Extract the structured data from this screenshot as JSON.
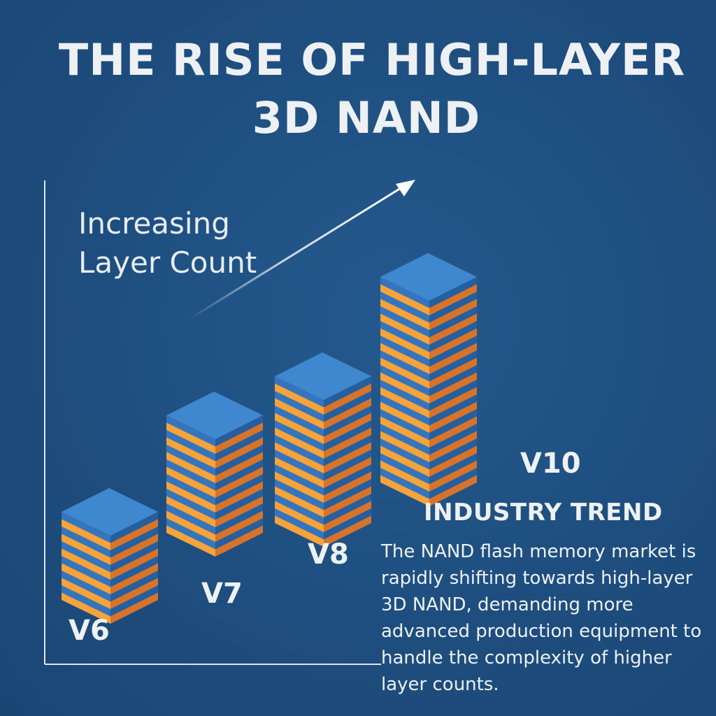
{
  "title": {
    "line1": "THE RISE OF HIGH-LAYER",
    "line2": "3D NAND"
  },
  "annotation": {
    "line1": "Increasing",
    "line2": "Layer Count"
  },
  "chart_data": {
    "type": "bar",
    "categories": [
      "V6",
      "V7",
      "V8",
      "V10"
    ],
    "values": [
      6,
      8,
      10,
      14
    ],
    "arrow": "increasing",
    "legend": "none",
    "grid": false
  },
  "industry_trend": {
    "heading": "INDUSTRY TREND",
    "body": "The NAND flash memory market is rapidly shifting towards high-layer 3D NAND, demanding more advanced production equipment to handle the complexity of higher layer counts."
  },
  "colors": {
    "background": "#1e4e7f",
    "block_top": "#3f88cf",
    "block_blue_left": "#3575bd",
    "block_blue_right": "#255f9e",
    "layer_orange_left": "#f5a33a",
    "layer_orange_right": "#d8732a",
    "text": "#eef1f3"
  }
}
